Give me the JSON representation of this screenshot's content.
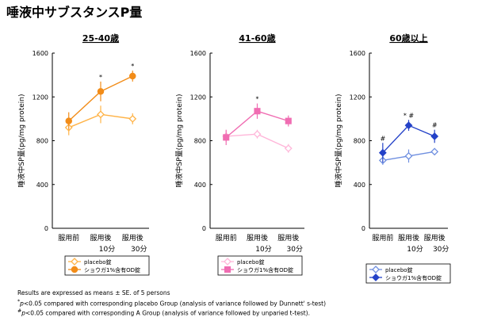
{
  "title": "唾液中サブスタンスP量",
  "chart_data": [
    {
      "type": "line",
      "title": "25-40歳",
      "ylabel": "唾液中SP量(pg/mg protein)",
      "ylim": [
        0,
        1600
      ],
      "yticks": [
        "0",
        "400",
        "800",
        "1200",
        "1600"
      ],
      "categories": [
        "服用前",
        "服用後\n10分",
        "服用後\n30分"
      ],
      "grid": false,
      "legend": "below",
      "series": [
        {
          "name": "placebo錠",
          "values": [
            920,
            1040,
            1000
          ],
          "err": [
            70,
            80,
            50
          ],
          "color": "#ffb347",
          "marker": "diamond",
          "filled": false
        },
        {
          "name": "ショウガ1%含有OD錠",
          "values": [
            980,
            1250,
            1390
          ],
          "err": [
            80,
            90,
            50
          ],
          "color": "#f28c18",
          "marker": "circle",
          "filled": true
        }
      ],
      "annotations": [
        {
          "category_index": 1,
          "text": "*"
        },
        {
          "category_index": 2,
          "text": "*"
        }
      ]
    },
    {
      "type": "line",
      "title": "41-60歳",
      "ylabel": "唾液中SP量(pg/mg protein)",
      "ylim": [
        0,
        1600
      ],
      "yticks": [
        "0",
        "400",
        "800",
        "1200",
        "1600"
      ],
      "categories": [
        "服用前",
        "服用後\n10分",
        "服用後\n30分"
      ],
      "grid": false,
      "legend": "below",
      "series": [
        {
          "name": "placebo錠",
          "values": [
            840,
            860,
            730
          ],
          "err": [
            50,
            40,
            40
          ],
          "color": "#ffb6d9",
          "marker": "diamond",
          "filled": false
        },
        {
          "name": "ショウガ1%含有OD錠",
          "values": [
            830,
            1070,
            980
          ],
          "err": [
            70,
            70,
            50
          ],
          "color": "#f06db2",
          "marker": "square",
          "filled": true
        }
      ],
      "annotations": [
        {
          "category_index": 1,
          "text": "*"
        }
      ]
    },
    {
      "type": "line",
      "title": "60歳以上",
      "ylabel": "唾液中SP量(pg/mg protein)",
      "ylim": [
        0,
        1600
      ],
      "yticks": [
        "0",
        "400",
        "800",
        "1200",
        "1600"
      ],
      "categories": [
        "服用前",
        "服用後\n10分",
        "服用後\n30分"
      ],
      "grid": false,
      "legend": "below",
      "series": [
        {
          "name": "placebo錠",
          "values": [
            620,
            660,
            700
          ],
          "err": [
            40,
            60,
            30
          ],
          "color": "#6f8fe0",
          "marker": "diamond",
          "filled": false
        },
        {
          "name": "ショウガ1%含有OD錠",
          "values": [
            690,
            940,
            840
          ],
          "err": [
            90,
            50,
            60
          ],
          "color": "#2442c8",
          "marker": "diamond",
          "filled": true
        }
      ],
      "annotations": [
        {
          "category_index": 0,
          "text": "#"
        },
        {
          "category_index": 1,
          "text": "* #"
        },
        {
          "category_index": 2,
          "text": "#"
        }
      ]
    }
  ],
  "footnotes": {
    "line1": "Results are expressed as means ± SE. of 5 persons",
    "line2_prefix": "*",
    "line2_p": "p",
    "line2_rest": "<0.05 compared with corresponding placebo Group (analysis of variance followed by Dunnett' s-test)",
    "line3_prefix": "#",
    "line3_p": "p",
    "line3_rest": "<0.05 compared with corresponding   A   Group (analysis of variance followed by unparied t-test)."
  },
  "colors": {
    "axis": "#000000",
    "legend_border": "#000000"
  }
}
